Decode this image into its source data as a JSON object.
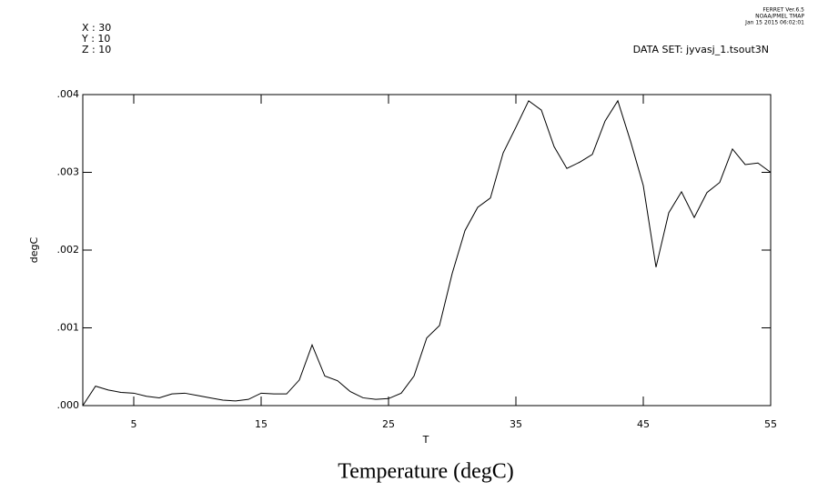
{
  "chart_data": {
    "type": "line",
    "title": "Temperature (degC)",
    "xlabel": "T",
    "ylabel": "degC",
    "annotations": [
      "X : 30",
      "Y : 10",
      "Z : 10"
    ],
    "dataset": "DATA SET: jyvasj_1.tsout3N",
    "header": [
      "FERRET  Ver.6.5",
      "NOAA/PMEL TMAP",
      "Jan 15 2015 06:02:01"
    ],
    "x": [
      1,
      2,
      3,
      4,
      5,
      6,
      7,
      8,
      9,
      10,
      11,
      12,
      13,
      14,
      15,
      16,
      17,
      18,
      19,
      20,
      21,
      22,
      23,
      24,
      25,
      26,
      27,
      28,
      29,
      30,
      31,
      32,
      33,
      34,
      35,
      36,
      37,
      38,
      39,
      40,
      41,
      42,
      43,
      44,
      45,
      46,
      47,
      48,
      49,
      50,
      51,
      52,
      53,
      54,
      55
    ],
    "series": [
      {
        "color": "#000000",
        "values": [
          0,
          0.00025,
          0.0002,
          0.00017,
          0.00016,
          0.00012,
          0.0001,
          0.00015,
          0.00016,
          0.00013,
          0.0001,
          7e-05,
          6e-05,
          8e-05,
          0.00016,
          0.00015,
          0.00015,
          0.00033,
          0.00078,
          0.00038,
          0.00032,
          0.00018,
          0.0001,
          8e-05,
          9e-05,
          0.00016,
          0.00038,
          0.00087,
          0.00103,
          0.0017,
          0.00225,
          0.00255,
          0.00267,
          0.00325,
          0.00358,
          0.00392,
          0.0038,
          0.00333,
          0.00305,
          0.00313,
          0.00323,
          0.00366,
          0.00392,
          0.0034,
          0.00283,
          0.00178,
          0.00248,
          0.00275,
          0.00242,
          0.00274,
          0.00287,
          0.0033,
          0.0031,
          0.00312,
          0.003
        ]
      }
    ],
    "xlim": [
      1,
      55
    ],
    "ylim": [
      0,
      0.004
    ],
    "xticks": [
      5,
      15,
      25,
      35,
      45,
      55
    ],
    "yticks": [
      {
        "value": 0,
        "label": ".000"
      },
      {
        "value": 0.001,
        "label": ".001"
      },
      {
        "value": 0.002,
        "label": ".002"
      },
      {
        "value": 0.003,
        "label": ".003"
      },
      {
        "value": 0.004,
        "label": ".004"
      }
    ]
  }
}
